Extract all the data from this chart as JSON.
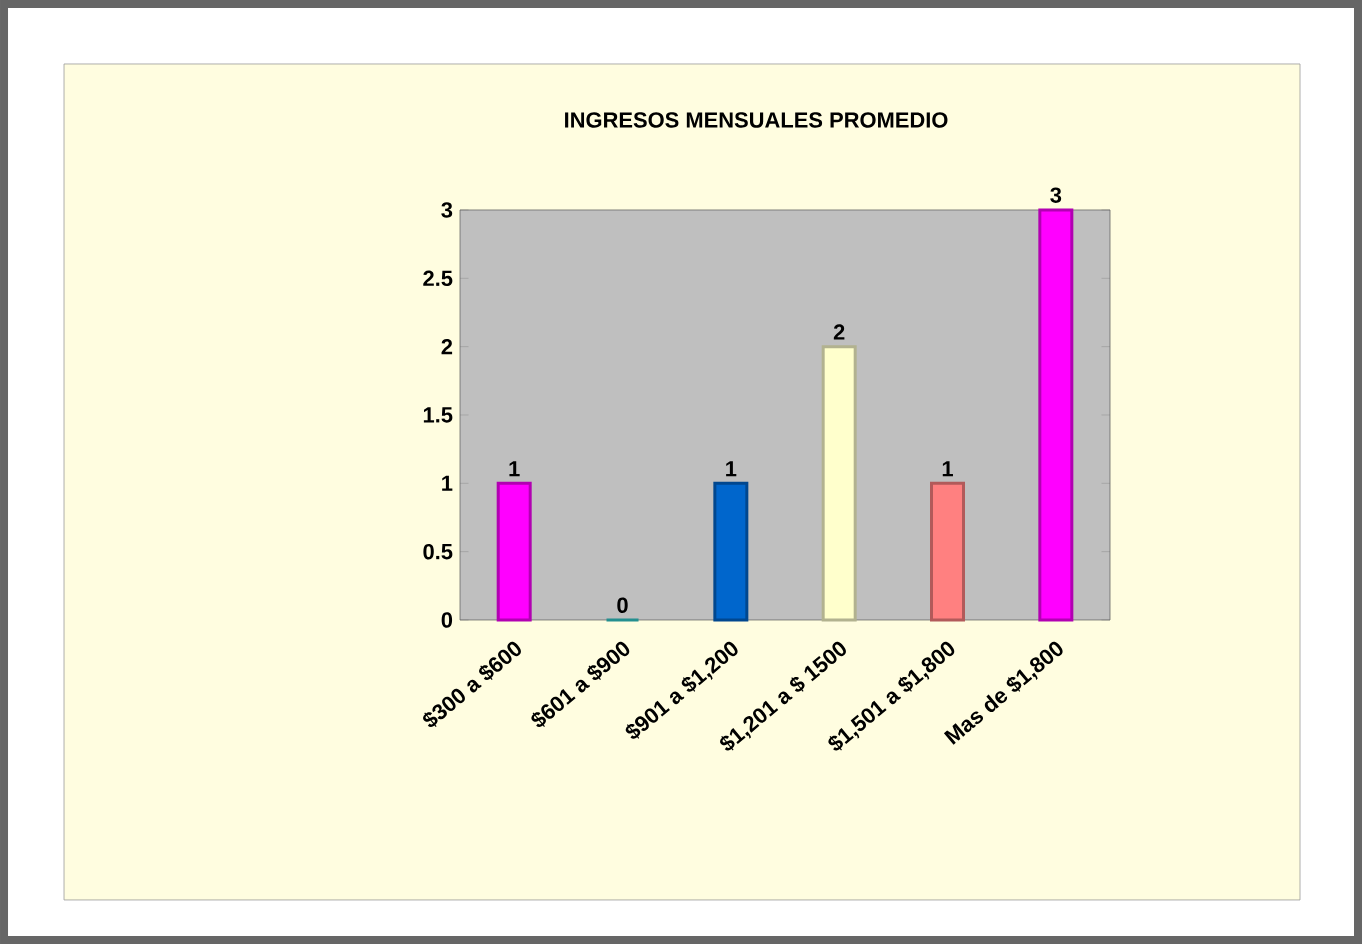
{
  "chart_data": {
    "type": "bar",
    "title": "INGRESOS MENSUALES PROMEDIO",
    "categories": [
      "$300 a $600",
      "$601 a $900",
      "$901 a $1,200",
      "$1,201 a $ 1500",
      "$1,501 a $1,800",
      "Mas de $1,800"
    ],
    "values": [
      1,
      0,
      1,
      2,
      1,
      3
    ],
    "colors": [
      "#ff00ff",
      "#33cccc",
      "#0066cc",
      "#ffffcc",
      "#ff8080",
      "#ff00ff"
    ],
    "ylim": [
      0,
      3
    ],
    "yticks": [
      0,
      0.5,
      1,
      1.5,
      2,
      2.5,
      3
    ],
    "data_labels": true,
    "grid": false
  }
}
